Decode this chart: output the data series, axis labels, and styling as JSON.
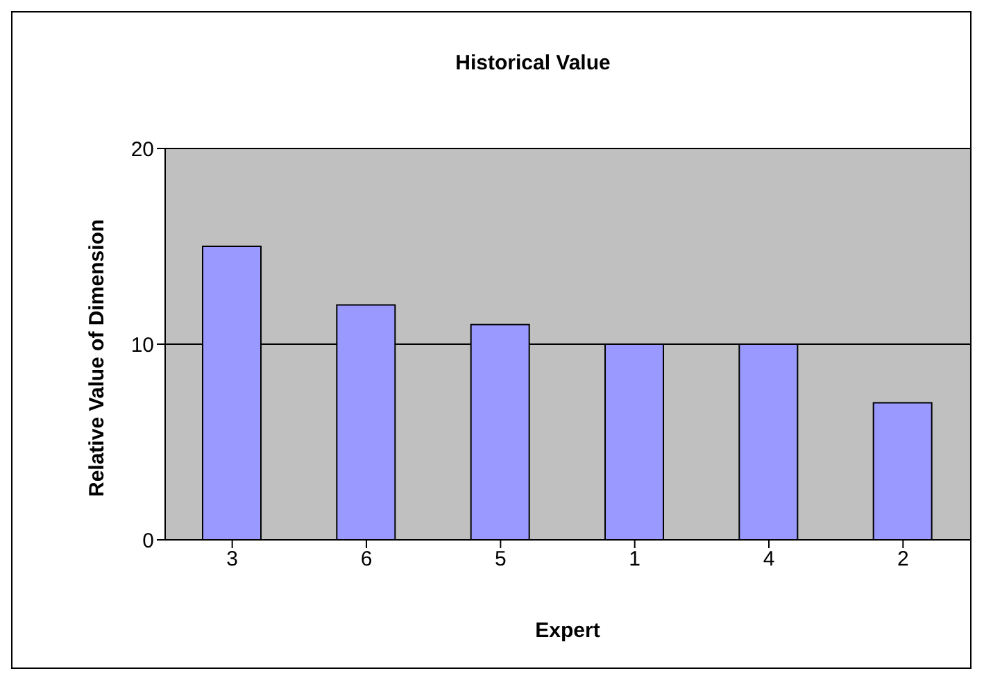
{
  "chart_data": {
    "type": "bar",
    "title": "Historical Value",
    "xlabel": "Expert",
    "ylabel": "Relative Value of Dimension",
    "categories": [
      "3",
      "6",
      "5",
      "1",
      "4",
      "2"
    ],
    "values": [
      15,
      12,
      11,
      10,
      10,
      7
    ],
    "color": "#9999ff",
    "ylim": [
      0,
      20
    ],
    "yticks": [
      0,
      10,
      20
    ],
    "grid": "y",
    "legend": false
  }
}
